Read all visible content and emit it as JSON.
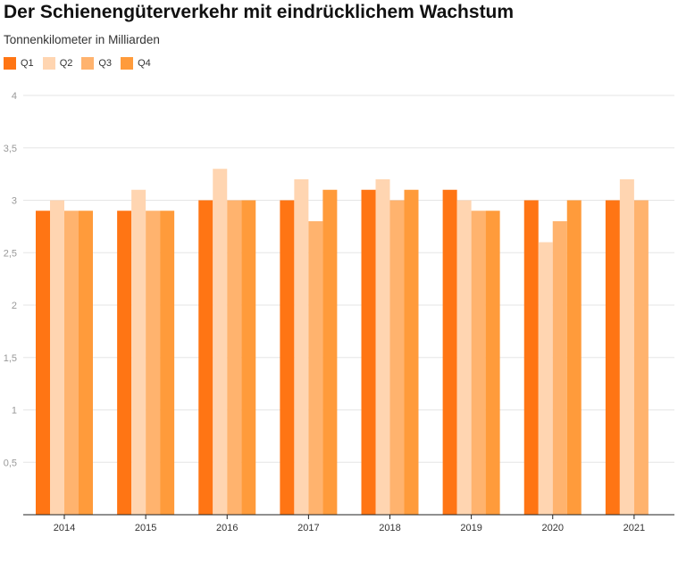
{
  "chart_data": {
    "type": "bar",
    "title": "Der Schienengüterverkehr mit eindrücklichem Wachstum",
    "subtitle": "Tonnenkilometer in Milliarden",
    "xlabel": "",
    "ylabel": "",
    "ylim": [
      0,
      4
    ],
    "yticks": [
      {
        "value": 0.5,
        "label": "0,5"
      },
      {
        "value": 1,
        "label": "1"
      },
      {
        "value": 1.5,
        "label": "1,5"
      },
      {
        "value": 2,
        "label": "2"
      },
      {
        "value": 2.5,
        "label": "2,5"
      },
      {
        "value": 3,
        "label": "3"
      },
      {
        "value": 3.5,
        "label": "3,5"
      },
      {
        "value": 4,
        "label": "4"
      }
    ],
    "grid": true,
    "legend_position": "top-left",
    "categories": [
      "2014",
      "2015",
      "2016",
      "2017",
      "2018",
      "2019",
      "2020",
      "2021"
    ],
    "series": [
      {
        "name": "Q1",
        "color": "#ff7514",
        "values": [
          2.9,
          2.9,
          3.0,
          3.0,
          3.1,
          3.1,
          3.0,
          3.0
        ]
      },
      {
        "name": "Q2",
        "color": "#ffd5b1",
        "values": [
          3.0,
          3.1,
          3.3,
          3.2,
          3.2,
          3.0,
          2.6,
          3.2
        ]
      },
      {
        "name": "Q3",
        "color": "#ffb36e",
        "values": [
          2.9,
          2.9,
          3.0,
          2.8,
          3.0,
          2.9,
          2.8,
          3.0
        ]
      },
      {
        "name": "Q4",
        "color": "#ff9b3b",
        "values": [
          2.9,
          2.9,
          3.0,
          3.1,
          3.1,
          2.9,
          3.0,
          null
        ]
      }
    ]
  }
}
